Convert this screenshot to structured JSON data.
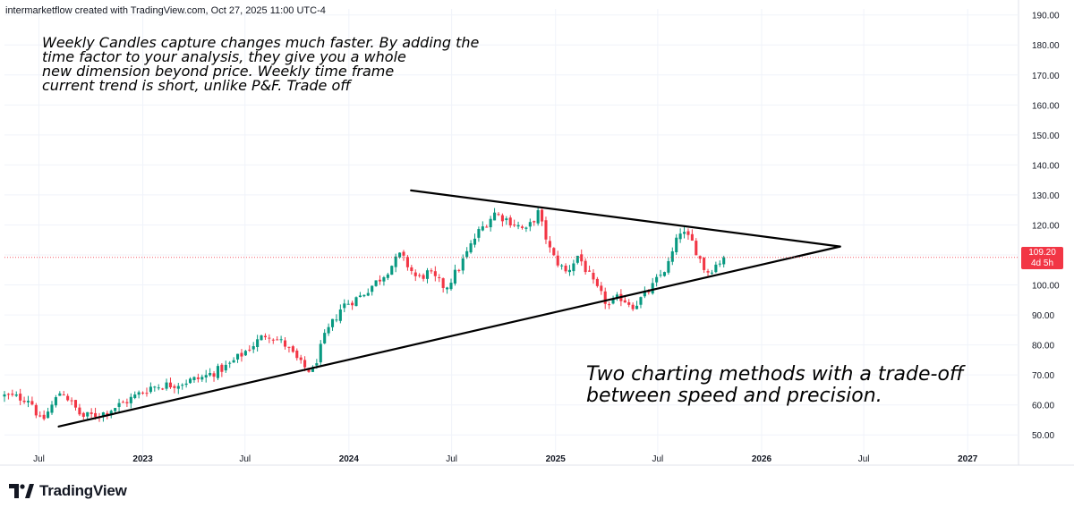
{
  "header": {
    "attribution": "intermarketflow created with TradingView.com, Oct 27, 2025 11:00 UTC-4"
  },
  "annotations": {
    "top_note": "Weekly Candles capture changes much faster. By adding the\ntime factor to your analysis, they give you a whole\nnew dimension beyond price. Weekly time frame\ncurrent trend is short, unlike P&F. Trade off",
    "bottom_note": "Two charting methods with a trade-off\nbetween speed and precision."
  },
  "price_tag": {
    "price": "109.20",
    "countdown": "4d 5h"
  },
  "footer": {
    "brand": "TradingView"
  },
  "colors": {
    "up": "#089981",
    "down": "#f23645",
    "trendline": "#000000",
    "grid": "#f0f3fa",
    "axis_text": "#131722",
    "price_line": "#f23645"
  },
  "icons": [
    "tradingview-logo-icon"
  ],
  "chart_data": {
    "type": "candlestick",
    "timeframe": "1W",
    "yaxis": {
      "ylim": [
        45,
        192
      ],
      "ticks": [
        "50.00",
        "60.00",
        "70.00",
        "80.00",
        "90.00",
        "100.00",
        "110.00",
        "120.00",
        "130.00",
        "140.00",
        "150.00",
        "160.00",
        "170.00",
        "180.00",
        "190.00"
      ],
      "position": "right"
    },
    "xaxis": {
      "start": "2022-05-01",
      "end": "2027-04-01",
      "ticks": [
        {
          "label": "Jul",
          "date": "2022-07-01"
        },
        {
          "label": "2023",
          "date": "2023-01-01"
        },
        {
          "label": "Jul",
          "date": "2023-07-01"
        },
        {
          "label": "2024",
          "date": "2024-01-01"
        },
        {
          "label": "Jul",
          "date": "2024-07-01"
        },
        {
          "label": "2025",
          "date": "2025-01-01"
        },
        {
          "label": "Jul",
          "date": "2025-07-01"
        },
        {
          "label": "2026",
          "date": "2026-01-01"
        },
        {
          "label": "Jul",
          "date": "2026-07-01"
        },
        {
          "label": "2027",
          "date": "2027-01-01"
        }
      ]
    },
    "last_price": 109.2,
    "trendlines": [
      {
        "name": "upper-trendline",
        "from": {
          "date": "2024-04-20",
          "price": 131.5
        },
        "to": {
          "date": "2026-05-20",
          "price": 112.8
        }
      },
      {
        "name": "lower-trendline",
        "from": {
          "date": "2022-08-05",
          "price": 52.8
        },
        "to": {
          "date": "2026-05-20",
          "price": 112.8
        }
      }
    ],
    "close_path": [
      [
        "2022-05-01",
        63
      ],
      [
        "2022-06-15",
        62
      ],
      [
        "2022-07-05",
        54
      ],
      [
        "2022-08-10",
        65
      ],
      [
        "2022-09-15",
        56
      ],
      [
        "2022-10-20",
        57
      ],
      [
        "2022-12-01",
        61
      ],
      [
        "2023-01-15",
        66
      ],
      [
        "2023-03-01",
        67
      ],
      [
        "2023-04-15",
        69
      ],
      [
        "2023-06-01",
        73
      ],
      [
        "2023-07-15",
        80
      ],
      [
        "2023-08-10",
        84
      ],
      [
        "2023-09-10",
        80
      ],
      [
        "2023-10-10",
        73
      ],
      [
        "2023-10-28",
        71
      ],
      [
        "2023-11-20",
        83
      ],
      [
        "2023-12-20",
        93
      ],
      [
        "2024-01-20",
        96
      ],
      [
        "2024-03-01",
        103
      ],
      [
        "2024-04-01",
        110
      ],
      [
        "2024-05-01",
        102
      ],
      [
        "2024-05-20",
        104
      ],
      [
        "2024-06-20",
        99
      ],
      [
        "2024-07-15",
        106
      ],
      [
        "2024-08-15",
        117
      ],
      [
        "2024-09-15",
        124
      ],
      [
        "2024-10-15",
        121
      ],
      [
        "2024-11-10",
        118
      ],
      [
        "2024-12-01",
        124
      ],
      [
        "2024-12-25",
        110
      ],
      [
        "2025-01-20",
        104
      ],
      [
        "2025-02-10",
        110
      ],
      [
        "2025-03-10",
        100
      ],
      [
        "2025-04-05",
        93
      ],
      [
        "2025-04-25",
        96
      ],
      [
        "2025-05-20",
        93
      ],
      [
        "2025-06-20",
        99
      ],
      [
        "2025-07-20",
        107
      ],
      [
        "2025-08-10",
        118
      ],
      [
        "2025-09-01",
        114
      ],
      [
        "2025-09-25",
        104
      ],
      [
        "2025-10-27",
        109.2
      ]
    ]
  }
}
